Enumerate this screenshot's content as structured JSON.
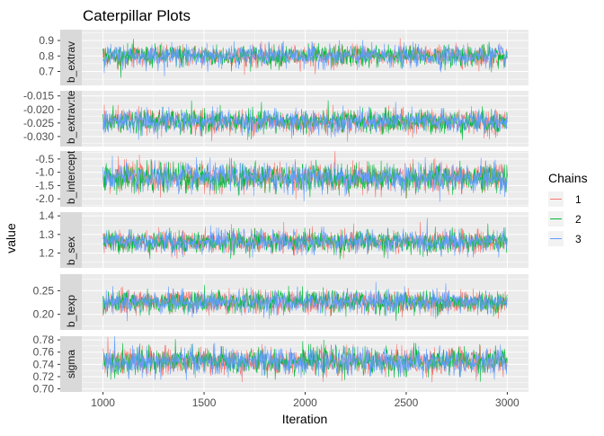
{
  "chart_data": {
    "type": "line",
    "title": "Caterpillar Plots",
    "xlabel": "Iteration",
    "ylabel": "value",
    "xlim": [
      895,
      3105
    ],
    "x_ticks": [
      "1000",
      "1500",
      "2000",
      "2500",
      "3000"
    ],
    "x_tick_values": [
      1000,
      1500,
      2000,
      2500,
      3000
    ],
    "iterations": [
      1000,
      3000
    ],
    "legend": {
      "title": "Chains",
      "position": "right",
      "entries": [
        "1",
        "2",
        "3"
      ]
    },
    "series_colors": {
      "1": "#F8766D",
      "2": "#00BA38",
      "3": "#619CFF"
    },
    "panels": [
      {
        "label": "b_extrav",
        "ylim": [
          0.61,
          0.97
        ],
        "ticks": [
          "0.7",
          "0.8",
          "0.9"
        ],
        "tick_values": [
          0.7,
          0.8,
          0.9
        ],
        "mean": 0.8,
        "sd": 0.035
      },
      {
        "label": "b_extrav:texp",
        "ylim": [
          -0.0337,
          -0.0131
        ],
        "ticks": [
          "-0.030",
          "-0.025",
          "-0.020",
          "-0.015"
        ],
        "tick_values": [
          -0.03,
          -0.025,
          -0.02,
          -0.015
        ],
        "mean": -0.0245,
        "sd": 0.0022
      },
      {
        "label": "b_intercept",
        "ylim": [
          -2.3,
          -0.2
        ],
        "ticks": [
          "-2.0",
          "-1.5",
          "-1.0",
          "-0.5"
        ],
        "tick_values": [
          -2.0,
          -1.5,
          -1.0,
          -0.5
        ],
        "mean": -1.2,
        "sd": 0.27
      },
      {
        "label": "b_sex",
        "ylim": [
          1.12,
          1.42
        ],
        "ticks": [
          "1.2",
          "1.3",
          "1.4"
        ],
        "tick_values": [
          1.2,
          1.3,
          1.4
        ],
        "mean": 1.26,
        "sd": 0.03
      },
      {
        "label": "b_texp",
        "ylim": [
          0.167,
          0.285
        ],
        "ticks": [
          "0.20",
          "0.25"
        ],
        "tick_values": [
          0.2,
          0.25
        ],
        "mean": 0.226,
        "sd": 0.012
      },
      {
        "label": "sigma",
        "ylim": [
          0.695,
          0.786
        ],
        "ticks": [
          "0.70",
          "0.72",
          "0.74",
          "0.76",
          "0.78"
        ],
        "tick_values": [
          0.7,
          0.72,
          0.74,
          0.76,
          0.78
        ],
        "mean": 0.745,
        "sd": 0.011
      }
    ]
  }
}
